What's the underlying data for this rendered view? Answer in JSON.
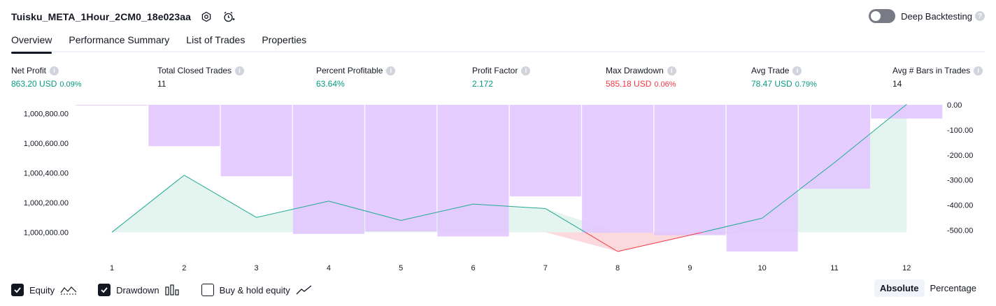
{
  "header": {
    "title": "Tuisku_META_1Hour_2CM0_18e023aa",
    "deep_backtesting_label": "Deep Backtesting"
  },
  "tabs": [
    {
      "label": "Overview",
      "active": true
    },
    {
      "label": "Performance Summary",
      "active": false
    },
    {
      "label": "List of Trades",
      "active": false
    },
    {
      "label": "Properties",
      "active": false
    }
  ],
  "metrics": [
    {
      "label": "Net Profit",
      "value": "863.20 USD",
      "pct": "0.09%",
      "color": "green"
    },
    {
      "label": "Total Closed Trades",
      "value": "11",
      "pct": "",
      "color": "dark"
    },
    {
      "label": "Percent Profitable",
      "value": "63.64%",
      "pct": "",
      "color": "green"
    },
    {
      "label": "Profit Factor",
      "value": "2.172",
      "pct": "",
      "color": "green"
    },
    {
      "label": "Max Drawdown",
      "value": "585.18 USD",
      "pct": "0.06%",
      "color": "red"
    },
    {
      "label": "Avg Trade",
      "value": "78.47 USD",
      "pct": "0.79%",
      "color": "green"
    },
    {
      "label": "Avg # Bars in Trades",
      "value": "14",
      "pct": "",
      "color": "dark"
    }
  ],
  "chart_data": {
    "type": "line",
    "x": [
      1,
      2,
      3,
      4,
      5,
      6,
      7,
      8,
      9,
      10,
      11,
      12
    ],
    "x_tick_labels": [
      "1",
      "2",
      "3",
      "4",
      "5",
      "6",
      "7",
      "8",
      "9",
      "10",
      "11",
      "12"
    ],
    "left_axis": {
      "tick_labels": [
        "1,000,800.00",
        "1,000,600.00",
        "1,000,400.00",
        "1,000,200.00",
        "1,000,000.00"
      ],
      "ticks": [
        1000800,
        1000600,
        1000400,
        1000200,
        1000000
      ],
      "range": [
        999870,
        1000860
      ]
    },
    "right_axis": {
      "tick_labels": [
        "0.00",
        "-100.00",
        "-200.00",
        "-300.00",
        "-400.00",
        "-500.00"
      ],
      "ticks": [
        0,
        -100,
        -200,
        -300,
        -400,
        -500
      ],
      "range": [
        -585,
        0
      ]
    },
    "series": [
      {
        "name": "Equity",
        "axis": "left",
        "values": [
          1000000,
          1000385,
          1000100,
          1000210,
          1000080,
          1000190,
          1000160,
          999870,
          999980,
          1000095,
          1000470,
          1000863
        ]
      },
      {
        "name": "Drawdown",
        "axis": "right",
        "values": [
          -2,
          -165,
          -285,
          -515,
          -505,
          -525,
          -365,
          -510,
          -520,
          -585,
          -335,
          -55
        ]
      }
    ],
    "colors": {
      "equity_line": "#22ab94",
      "equity_fill": "#e4f4ef",
      "equity_below_line": "#f23645",
      "equity_below_fill": "#fbd9dc",
      "drawdown_bar": "#e1c4ff"
    }
  },
  "legend": {
    "equity_label": "Equity",
    "drawdown_label": "Drawdown",
    "buyhold_label": "Buy & hold equity"
  },
  "mode": {
    "absolute_label": "Absolute",
    "percentage_label": "Percentage"
  }
}
